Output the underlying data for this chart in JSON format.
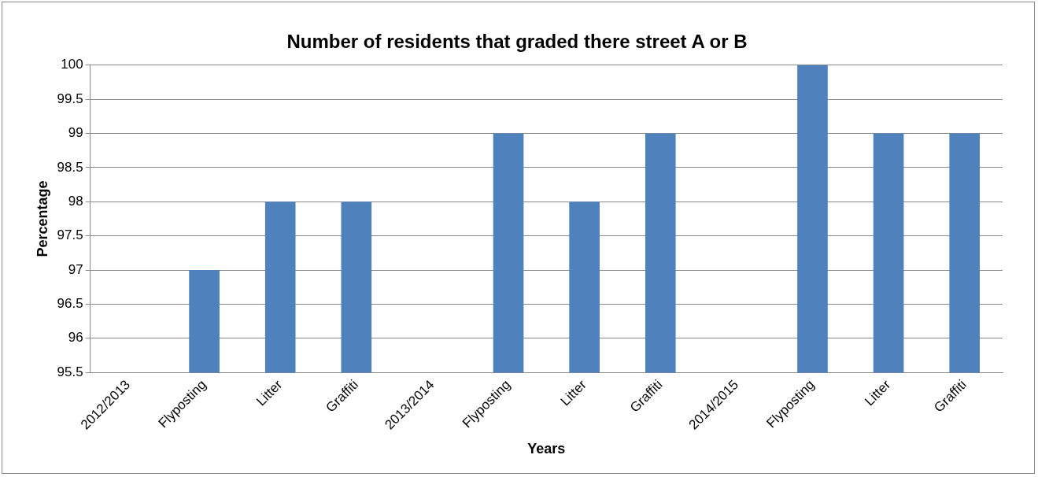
{
  "chart_data": {
    "type": "bar",
    "title": "Number of residents that graded there street A or B",
    "xlabel": "Years",
    "ylabel": "Percentage",
    "categories": [
      "2012/2013",
      "Flyposting",
      "Litter",
      "Graffiti",
      "2013/2014",
      "Flyposting",
      "Litter",
      "Graffiti",
      "2014/2015",
      "Flyposting",
      "Litter",
      "Graffiti"
    ],
    "values": [
      null,
      97,
      98,
      98,
      null,
      99,
      98,
      99,
      null,
      100,
      99,
      99
    ],
    "color": "#4f81bd",
    "ylim": [
      95.5,
      100
    ],
    "yticks": [
      95.5,
      96,
      96.5,
      97,
      97.5,
      98,
      98.5,
      99,
      99.5,
      100
    ],
    "grid": "y",
    "legend": false
  }
}
